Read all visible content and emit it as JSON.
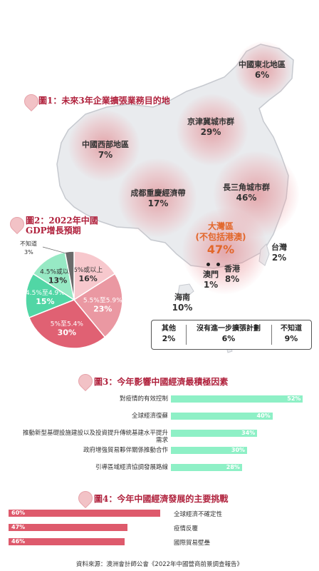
{
  "colors": {
    "accent_red": "#b0223d",
    "map_fill": "#e9ebee",
    "map_stroke": "#c6c9cf",
    "bar_green": "#8ef0c6",
    "bar_red": "#de5a6c",
    "pie_colors": [
      "#f7c8cd",
      "#ea98a2",
      "#e06173",
      "#51d6a5",
      "#97e9c4",
      "#6b6b6b"
    ]
  },
  "figures": {
    "fig1_title": "圖1：未來3年企業擴張業務目的地",
    "fig2_title_line1": "圖2：2022年中國",
    "fig2_title_line2": "GDP增長預期",
    "fig3_title": "圖3：今年影響中國經濟最積極因素",
    "fig4_title": "圖4：今年中國經濟發展的主要挑戰"
  },
  "chart_data": [
    {
      "type": "map",
      "title": "圖1：未來3年企業擴張業務目的地",
      "regions": [
        {
          "name": "中國東北地區",
          "value": "6%"
        },
        {
          "name": "京津冀城市群",
          "value": "29%"
        },
        {
          "name": "中國西部地區",
          "value": "7%"
        },
        {
          "name": "成都重慶經濟帶",
          "value": "17%"
        },
        {
          "name": "長三角城市群",
          "value": "46%"
        },
        {
          "name": "大灣區",
          "sub": "(不包括港澳)",
          "value": "47%"
        },
        {
          "name": "台灣",
          "value": "2%"
        },
        {
          "name": "澳門",
          "value": "1%"
        },
        {
          "name": "香港",
          "value": "8%"
        },
        {
          "name": "海南",
          "value": "10%"
        }
      ],
      "others": [
        {
          "label": "其他",
          "value": "2%"
        },
        {
          "label": "沒有進一步擴張計劃",
          "value": "6%"
        },
        {
          "label": "不知道",
          "value": "9%"
        }
      ]
    },
    {
      "type": "pie",
      "title": "圖2：2022年中國 GDP增長預期",
      "slices": [
        {
          "label": "6%或以上",
          "value": 16
        },
        {
          "label": "5.5%至5.9%",
          "value": 23
        },
        {
          "label": "5%至5.4%",
          "value": 30
        },
        {
          "label": "4.5%至4.9%",
          "value": 15
        },
        {
          "label": "4.5%或以下",
          "value": 13
        },
        {
          "label": "不知道",
          "value": 3
        }
      ]
    },
    {
      "type": "bar",
      "title": "圖3：今年影響中國經濟最積極因素",
      "categories": [
        "對疫情的有效控制",
        "全球經濟復蘇",
        "推動新型基礎設施建設以及投資提升傳統基建水平提升需求",
        "政府增強貿易夥伴關係推動合作",
        "引導區域經濟協調發展路線"
      ],
      "values": [
        52,
        40,
        34,
        30,
        28
      ],
      "xlim": [
        0,
        55
      ]
    },
    {
      "type": "bar",
      "title": "圖4：今年中國經濟發展的主要挑戰",
      "categories": [
        "全球經濟不確定性",
        "疫情反覆",
        "國際貿易壁壘"
      ],
      "values": [
        60,
        47,
        46
      ],
      "xlim": [
        0,
        62
      ]
    }
  ],
  "source": "資料來源：澳洲會計師公會《2022年中國營商前景調查報告》"
}
